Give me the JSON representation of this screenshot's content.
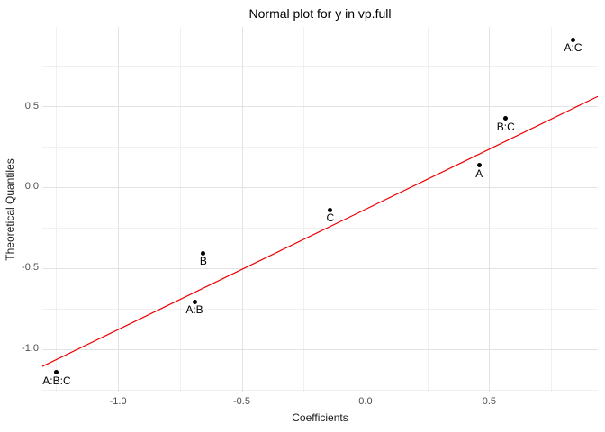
{
  "chart_data": {
    "type": "scatter",
    "title": "Normal plot for y in vp.full",
    "xlabel": "Coefficients",
    "ylabel": "Theoretical Quantiles",
    "xlim": [
      -1.306,
      0.939
    ],
    "ylim": [
      -1.267,
      0.989
    ],
    "grid": true,
    "legend_position": "none",
    "x_ticks": [
      {
        "value": -1.0,
        "label": "-1.0"
      },
      {
        "value": -0.5,
        "label": "-0.5"
      },
      {
        "value": 0.0,
        "label": "0.0"
      },
      {
        "value": 0.5,
        "label": "0.5"
      }
    ],
    "y_ticks": [
      {
        "value": 0.5,
        "label": "0.5"
      },
      {
        "value": 0.0,
        "label": "0.0"
      },
      {
        "value": -0.5,
        "label": "-0.5"
      },
      {
        "value": -1.0,
        "label": "-1.0"
      }
    ],
    "x_minor_gridlines": [
      -1.25,
      -0.75,
      -0.25,
      0.25,
      0.75
    ],
    "y_minor_gridlines": [
      0.75,
      0.25,
      -0.25,
      -0.75,
      -1.25
    ],
    "points": [
      {
        "label": "A:C",
        "x": 0.839,
        "y": 0.909
      },
      {
        "label": "B:C",
        "x": 0.567,
        "y": 0.424
      },
      {
        "label": "A",
        "x": 0.459,
        "y": 0.135
      },
      {
        "label": "C",
        "x": -0.142,
        "y": -0.139
      },
      {
        "label": "B",
        "x": -0.655,
        "y": -0.406
      },
      {
        "label": "A:B",
        "x": -0.691,
        "y": -0.706
      },
      {
        "label": "A:B:C",
        "x": -1.248,
        "y": -1.144
      }
    ],
    "ref_line": {
      "slope": 0.742,
      "intercept": -0.137
    },
    "colors": {
      "background": "#FFFFFF",
      "major_grid": "#E3E3E3",
      "minor_grid": "#F0F0F0",
      "point": "#000000",
      "ref_line": "#EE0000",
      "tick_label": "#4D4D4D",
      "axis_title": "#1A1A1A",
      "title": "#000000"
    }
  }
}
